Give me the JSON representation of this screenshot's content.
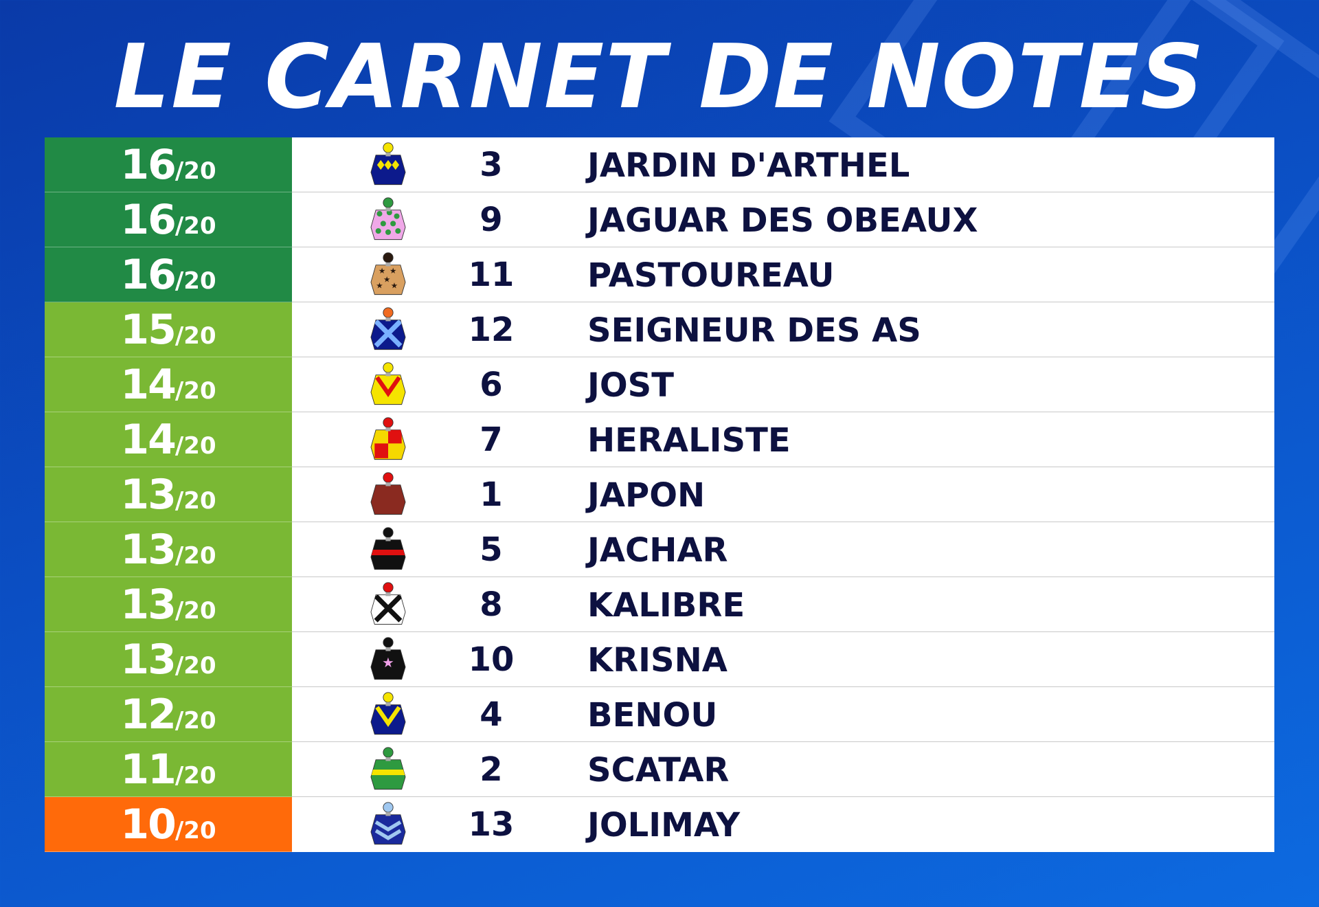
{
  "title": "LE CARNET DE NOTES",
  "colors": {
    "top": "#218a45",
    "good": "#7ab834",
    "low": "#ff6a0a",
    "text": "#0d1140"
  },
  "rows": [
    {
      "score": "16",
      "max": "/20",
      "tier": "top",
      "number": "3",
      "name": "JARDIN D'ARTHEL",
      "silk": {
        "cap": "#f5e400",
        "body": "#0c1a8c",
        "pattern": "diamonds",
        "accent": "#f5e400"
      }
    },
    {
      "score": "16",
      "max": "/20",
      "tier": "top",
      "number": "9",
      "name": "JAGUAR DES OBEAUX",
      "silk": {
        "cap": "#2e9a40",
        "body": "#f0a8e8",
        "pattern": "spots",
        "accent": "#2e9a40"
      }
    },
    {
      "score": "16",
      "max": "/20",
      "tier": "top",
      "number": "11",
      "name": "PASTOUREAU",
      "silk": {
        "cap": "#2a1a10",
        "body": "#d9a060",
        "pattern": "stars",
        "accent": "#2a1a10"
      }
    },
    {
      "score": "15",
      "max": "/20",
      "tier": "good",
      "number": "12",
      "name": "SEIGNEUR DES AS",
      "silk": {
        "cap": "#f06a20",
        "body": "#0c1a8c",
        "pattern": "cross",
        "accent": "#7ab0ff"
      }
    },
    {
      "score": "14",
      "max": "/20",
      "tier": "good",
      "number": "6",
      "name": "JOST",
      "silk": {
        "cap": "#f5e400",
        "body": "#f5e400",
        "pattern": "chevron",
        "accent": "#e01010"
      }
    },
    {
      "score": "14",
      "max": "/20",
      "tier": "good",
      "number": "7",
      "name": "HERALISTE",
      "silk": {
        "cap": "#e01010",
        "body": "#f5d800",
        "pattern": "quarters",
        "accent": "#e01010"
      }
    },
    {
      "score": "13",
      "max": "/20",
      "tier": "good",
      "number": "1",
      "name": "JAPON",
      "silk": {
        "cap": "#e01010",
        "body": "#8a2a20",
        "pattern": "plain",
        "accent": "#8a2a20"
      }
    },
    {
      "score": "13",
      "max": "/20",
      "tier": "good",
      "number": "5",
      "name": "JACHAR",
      "silk": {
        "cap": "#111111",
        "body": "#111111",
        "pattern": "band",
        "accent": "#e01010"
      }
    },
    {
      "score": "13",
      "max": "/20",
      "tier": "good",
      "number": "8",
      "name": "KALIBRE",
      "silk": {
        "cap": "#e01010",
        "body": "#ffffff",
        "pattern": "cross",
        "accent": "#111111"
      }
    },
    {
      "score": "13",
      "max": "/20",
      "tier": "good",
      "number": "10",
      "name": "KRISNA",
      "silk": {
        "cap": "#111111",
        "body": "#111111",
        "pattern": "star",
        "accent": "#f0a0e8"
      }
    },
    {
      "score": "12",
      "max": "/20",
      "tier": "good",
      "number": "4",
      "name": "BENOU",
      "silk": {
        "cap": "#f5e400",
        "body": "#0c1a8c",
        "pattern": "chevron",
        "accent": "#f5e400"
      }
    },
    {
      "score": "11",
      "max": "/20",
      "tier": "good",
      "number": "2",
      "name": "SCATAR",
      "silk": {
        "cap": "#2e9a40",
        "body": "#2e9a40",
        "pattern": "band",
        "accent": "#f5e400"
      }
    },
    {
      "score": "10",
      "max": "/20",
      "tier": "low",
      "number": "13",
      "name": "JOLIMAY",
      "silk": {
        "cap": "#a0c8f0",
        "body": "#1a2a9c",
        "pattern": "chevrons",
        "accent": "#a0c8f0"
      }
    }
  ]
}
